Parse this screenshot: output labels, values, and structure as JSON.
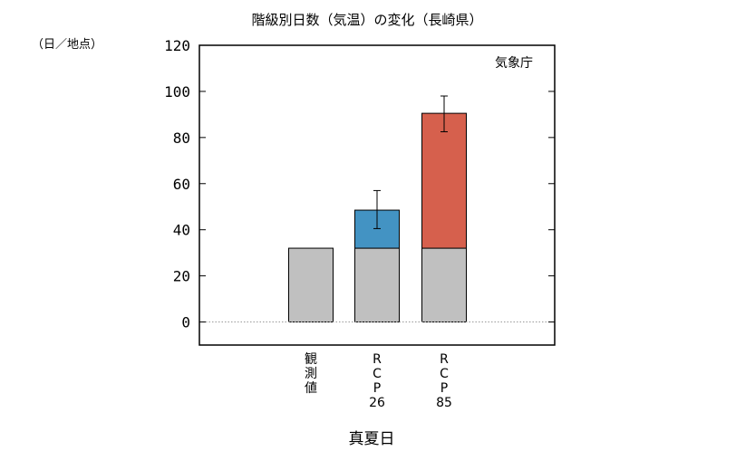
{
  "chart_data": {
    "type": "bar",
    "title": "階級別日数（気温）の変化（長崎県）",
    "ylabel": "（日／地点）",
    "xlabel": "真夏日",
    "credit": "気象庁",
    "ylim": [
      -10,
      120
    ],
    "yticks": [
      0,
      20,
      40,
      60,
      80,
      100,
      120
    ],
    "grid": false,
    "legend": "none",
    "categories": [
      {
        "lines": [
          "観",
          "測",
          "値"
        ]
      },
      {
        "lines": [
          "R",
          "C",
          "P",
          "26"
        ]
      },
      {
        "lines": [
          "R",
          "C",
          "P",
          "85"
        ]
      }
    ],
    "series": [
      {
        "role": "base",
        "values": [
          32,
          32,
          32
        ],
        "color": "#c0c0c0"
      },
      {
        "role": "increase",
        "values": [
          null,
          48.5,
          90.5
        ],
        "colors": [
          null,
          "#4393c3",
          "#d6604d"
        ]
      }
    ],
    "error_bars": [
      null,
      {
        "low": 40.5,
        "high": 57
      },
      {
        "low": 82.5,
        "high": 98
      }
    ]
  }
}
